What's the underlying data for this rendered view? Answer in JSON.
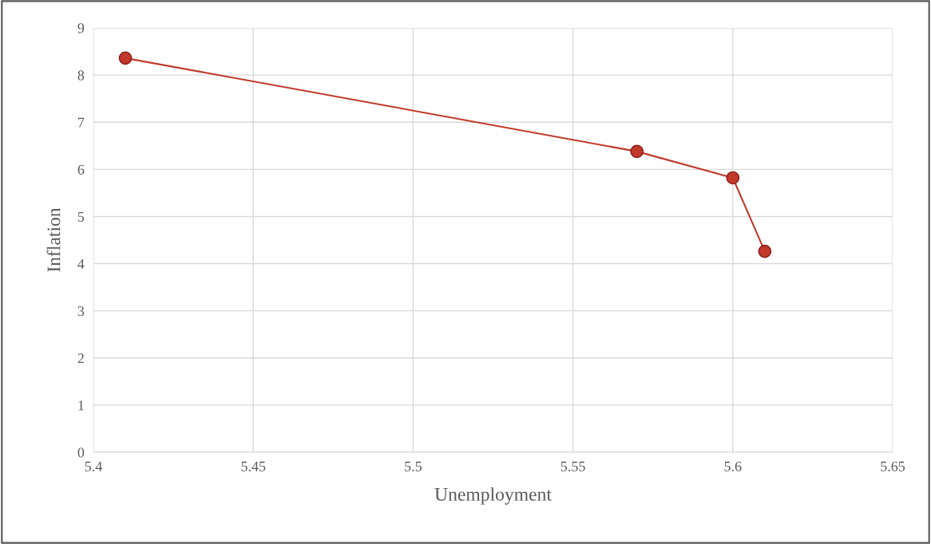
{
  "chart_data": {
    "type": "line",
    "xlabel": "Unemployment",
    "ylabel": "Inflation",
    "x": [
      5.41,
      5.57,
      5.6,
      5.61
    ],
    "series": [
      {
        "color": "#c0392b",
        "values": [
          8.36,
          6.38,
          5.82,
          4.26
        ]
      }
    ],
    "xlim": [
      5.4,
      5.65
    ],
    "xticks": [
      5.4,
      5.45,
      5.5,
      5.55,
      5.6,
      5.65
    ],
    "ylim": [
      0,
      9
    ],
    "yticks": [
      0,
      1,
      2,
      3,
      4,
      5,
      6,
      7,
      8,
      9
    ],
    "grid": true,
    "marker": "circle",
    "line_style": "solid"
  }
}
